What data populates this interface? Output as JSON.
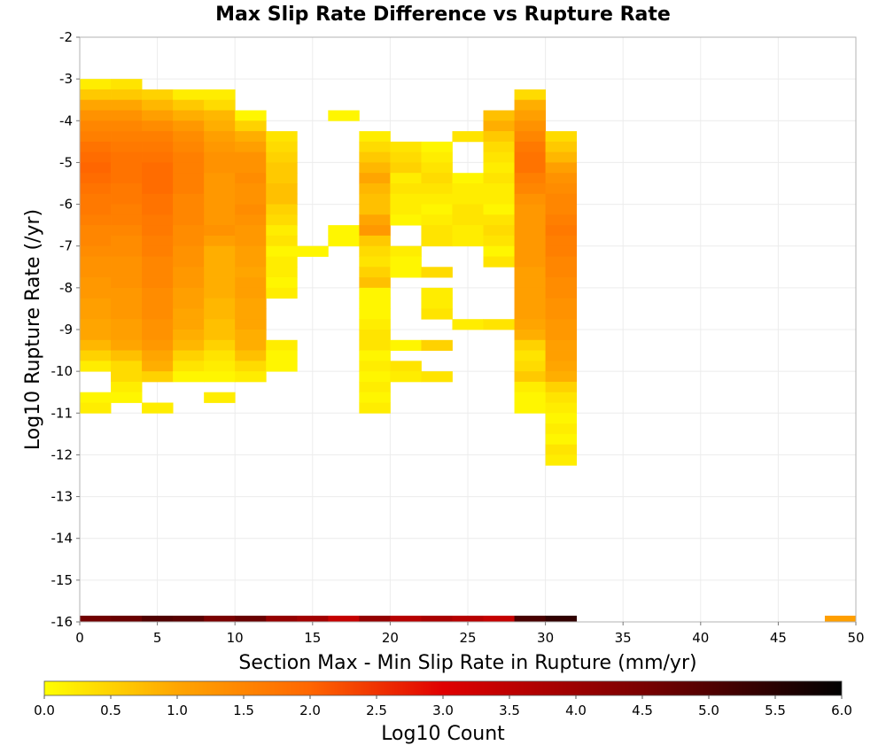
{
  "chart_data": {
    "type": "heatmap",
    "title": "Max Slip Rate Difference vs Rupture Rate",
    "xlabel": "Section Max - Min Slip Rate in Rupture (mm/yr)",
    "ylabel": "Log10 Rupture Rate (/yr)",
    "xlim": [
      0,
      50
    ],
    "ylim": [
      -16,
      -2
    ],
    "x_ticks": [
      "0",
      "5",
      "10",
      "15",
      "20",
      "25",
      "30",
      "35",
      "40",
      "45",
      "50"
    ],
    "y_ticks": [
      "-2",
      "-3",
      "-4",
      "-5",
      "-6",
      "-7",
      "-8",
      "-9",
      "-10",
      "-11",
      "-12",
      "-13",
      "-14",
      "-15",
      "-16"
    ],
    "grid": true,
    "bin_width_x": 2,
    "bin_height_y": 0.25,
    "colorbar": {
      "label": "Log10 Count",
      "range": [
        0,
        6
      ],
      "ticks": [
        "0.0",
        "0.5",
        "1.0",
        "1.5",
        "2.0",
        "2.5",
        "3.0",
        "3.5",
        "4.0",
        "4.5",
        "5.0",
        "5.5",
        "6.0"
      ],
      "colors": [
        "#ffff00",
        "#ffa500",
        "#ff6600",
        "#e00000",
        "#7a0000",
        "#000000"
      ]
    },
    "columns": [
      {
        "x": 0,
        "y_top": -3.0,
        "values": [
          0.2,
          0.6,
          1.0,
          1.3,
          1.5,
          1.6,
          1.8,
          1.9,
          2.0,
          1.9,
          1.8,
          1.7,
          1.7,
          1.6,
          1.5,
          1.5,
          1.4,
          1.3,
          1.3,
          1.2,
          1.2,
          1.1,
          1.1,
          1.0,
          1.0,
          0.8,
          0.5,
          0.2,
          null,
          null,
          0.1,
          0.2
        ]
      },
      {
        "x": 2,
        "y_top": -3.0,
        "values": [
          0.3,
          0.6,
          1.0,
          1.3,
          1.5,
          1.6,
          1.7,
          1.8,
          1.8,
          1.8,
          1.7,
          1.7,
          1.6,
          1.6,
          1.5,
          1.4,
          1.4,
          1.3,
          1.3,
          1.3,
          1.2,
          1.2,
          1.2,
          1.1,
          1.1,
          1.0,
          0.7,
          0.4,
          0.4,
          0.2,
          0.1
        ]
      },
      {
        "x": 4,
        "y_top": -3.25,
        "values": [
          0.5,
          0.8,
          1.1,
          1.4,
          1.6,
          1.7,
          1.8,
          1.9,
          1.9,
          1.9,
          1.8,
          1.8,
          1.7,
          1.7,
          1.6,
          1.6,
          1.5,
          1.5,
          1.5,
          1.4,
          1.4,
          1.4,
          1.3,
          1.3,
          1.2,
          1.0,
          0.9,
          0.5,
          null,
          null,
          0.2
        ]
      },
      {
        "x": 6,
        "y_top": -3.25,
        "values": [
          0.2,
          0.6,
          0.9,
          1.2,
          1.4,
          1.5,
          1.6,
          1.6,
          1.6,
          1.6,
          1.5,
          1.5,
          1.5,
          1.4,
          1.4,
          1.3,
          1.3,
          1.2,
          1.2,
          1.1,
          1.1,
          1.0,
          1.0,
          0.9,
          0.8,
          0.5,
          0.3,
          0.1
        ]
      },
      {
        "x": 8,
        "y_top": -3.25,
        "values": [
          0.2,
          0.4,
          0.8,
          0.9,
          1.1,
          1.2,
          1.3,
          1.3,
          1.2,
          1.2,
          1.2,
          1.2,
          1.2,
          1.3,
          1.1,
          0.9,
          0.9,
          0.9,
          0.9,
          0.9,
          0.8,
          0.8,
          0.7,
          0.7,
          0.5,
          0.3,
          0.2,
          0.1,
          null,
          0.2
        ]
      },
      {
        "x": 10,
        "y_top": -3.75,
        "values": [
          0.1,
          0.5,
          0.9,
          1.1,
          1.3,
          1.3,
          1.4,
          1.3,
          1.3,
          1.4,
          1.3,
          1.2,
          1.2,
          1.1,
          1.1,
          1.0,
          1.1,
          1.1,
          1.0,
          1.0,
          1.0,
          0.9,
          0.9,
          0.7,
          0.4,
          0.2
        ]
      },
      {
        "x": 12,
        "y_top": -4.25,
        "values": [
          0.3,
          0.4,
          0.5,
          0.6,
          0.6,
          0.7,
          0.7,
          0.5,
          0.4,
          0.2,
          0.3,
          0.1,
          0.2,
          0.2,
          0.1,
          0.2,
          null,
          null,
          null,
          null,
          0.2,
          0.1,
          0.1
        ]
      },
      {
        "x": 14,
        "y_top": -7.0,
        "values": [
          0.1
        ]
      },
      {
        "x": 16,
        "y_top": -3.75,
        "values": [
          0.1,
          null,
          null,
          null,
          null,
          null,
          null,
          null,
          null,
          null,
          null,
          0.1,
          0.1
        ]
      },
      {
        "x": 18,
        "y_top": -4.25,
        "values": [
          0.2,
          0.4,
          0.6,
          0.8,
          1.0,
          0.8,
          0.7,
          0.7,
          1.0,
          1.2,
          0.6,
          0.4,
          0.3,
          0.5,
          0.7,
          0.1,
          0.1,
          0.1,
          0.2,
          0.3,
          0.3,
          0.1,
          0.2,
          0.1,
          0.2,
          0.1,
          0.2
        ]
      },
      {
        "x": 20,
        "y_top": -4.5,
        "values": [
          0.3,
          0.4,
          0.5,
          0.2,
          0.3,
          0.2,
          0.2,
          0.1,
          null,
          null,
          0.2,
          0.1,
          0.1,
          null,
          null,
          null,
          null,
          null,
          null,
          0.1,
          null,
          0.3,
          0.2
        ]
      },
      {
        "x": 22,
        "y_top": -4.5,
        "values": [
          0.1,
          0.2,
          0.3,
          0.4,
          0.3,
          0.2,
          0.1,
          0.2,
          0.3,
          0.3,
          null,
          null,
          0.4,
          null,
          0.2,
          0.2,
          0.3,
          null,
          null,
          0.5,
          null,
          null,
          0.3
        ]
      },
      {
        "x": 24,
        "y_top": -4.25,
        "values": [
          0.3,
          null,
          null,
          null,
          0.1,
          0.2,
          0.2,
          0.3,
          0.3,
          0.2,
          0.2,
          null,
          null,
          null,
          null,
          null,
          null,
          null,
          0.2
        ]
      },
      {
        "x": 26,
        "y_top": -3.75,
        "values": [
          0.7,
          0.9,
          0.6,
          0.4,
          0.3,
          0.2,
          0.3,
          0.2,
          0.2,
          0.1,
          0.3,
          0.4,
          0.3,
          0.1,
          0.3,
          null,
          null,
          null,
          null,
          null,
          0.3
        ]
      },
      {
        "x": 28,
        "y_top": -3.25,
        "values": [
          0.4,
          0.9,
          1.1,
          1.3,
          1.5,
          1.7,
          1.8,
          1.8,
          1.6,
          1.5,
          1.3,
          1.2,
          1.2,
          1.2,
          1.2,
          1.2,
          1.2,
          1.1,
          1.1,
          1.1,
          1.1,
          1.1,
          1.0,
          0.9,
          0.5,
          0.3,
          0.4,
          0.6,
          0.2,
          0.1,
          0.1
        ]
      },
      {
        "x": 30,
        "y_top": -4.25,
        "values": [
          0.4,
          0.6,
          0.8,
          1.1,
          1.3,
          1.4,
          1.5,
          1.5,
          1.6,
          1.7,
          1.6,
          1.6,
          1.5,
          1.5,
          1.4,
          1.4,
          1.3,
          1.3,
          1.2,
          1.2,
          1.1,
          1.1,
          1.0,
          0.9,
          0.5,
          0.3,
          0.2,
          0.1,
          0.2,
          0.1,
          0.3,
          0.2
        ]
      }
    ],
    "bottom_row": {
      "y": -16,
      "cells": [
        {
          "x": 0,
          "value": 4.6
        },
        {
          "x": 2,
          "value": 4.7
        },
        {
          "x": 4,
          "value": 5.0
        },
        {
          "x": 6,
          "value": 4.9
        },
        {
          "x": 8,
          "value": 4.5
        },
        {
          "x": 10,
          "value": 4.7
        },
        {
          "x": 12,
          "value": 4.1
        },
        {
          "x": 14,
          "value": 3.9
        },
        {
          "x": 16,
          "value": 3.4
        },
        {
          "x": 18,
          "value": 4.1
        },
        {
          "x": 20,
          "value": 3.6
        },
        {
          "x": 22,
          "value": 3.8
        },
        {
          "x": 24,
          "value": 3.6
        },
        {
          "x": 26,
          "value": 3.4
        },
        {
          "x": 28,
          "value": 5.1
        },
        {
          "x": 30,
          "value": 5.4
        },
        {
          "x": 48,
          "value": 1.1
        }
      ]
    }
  }
}
